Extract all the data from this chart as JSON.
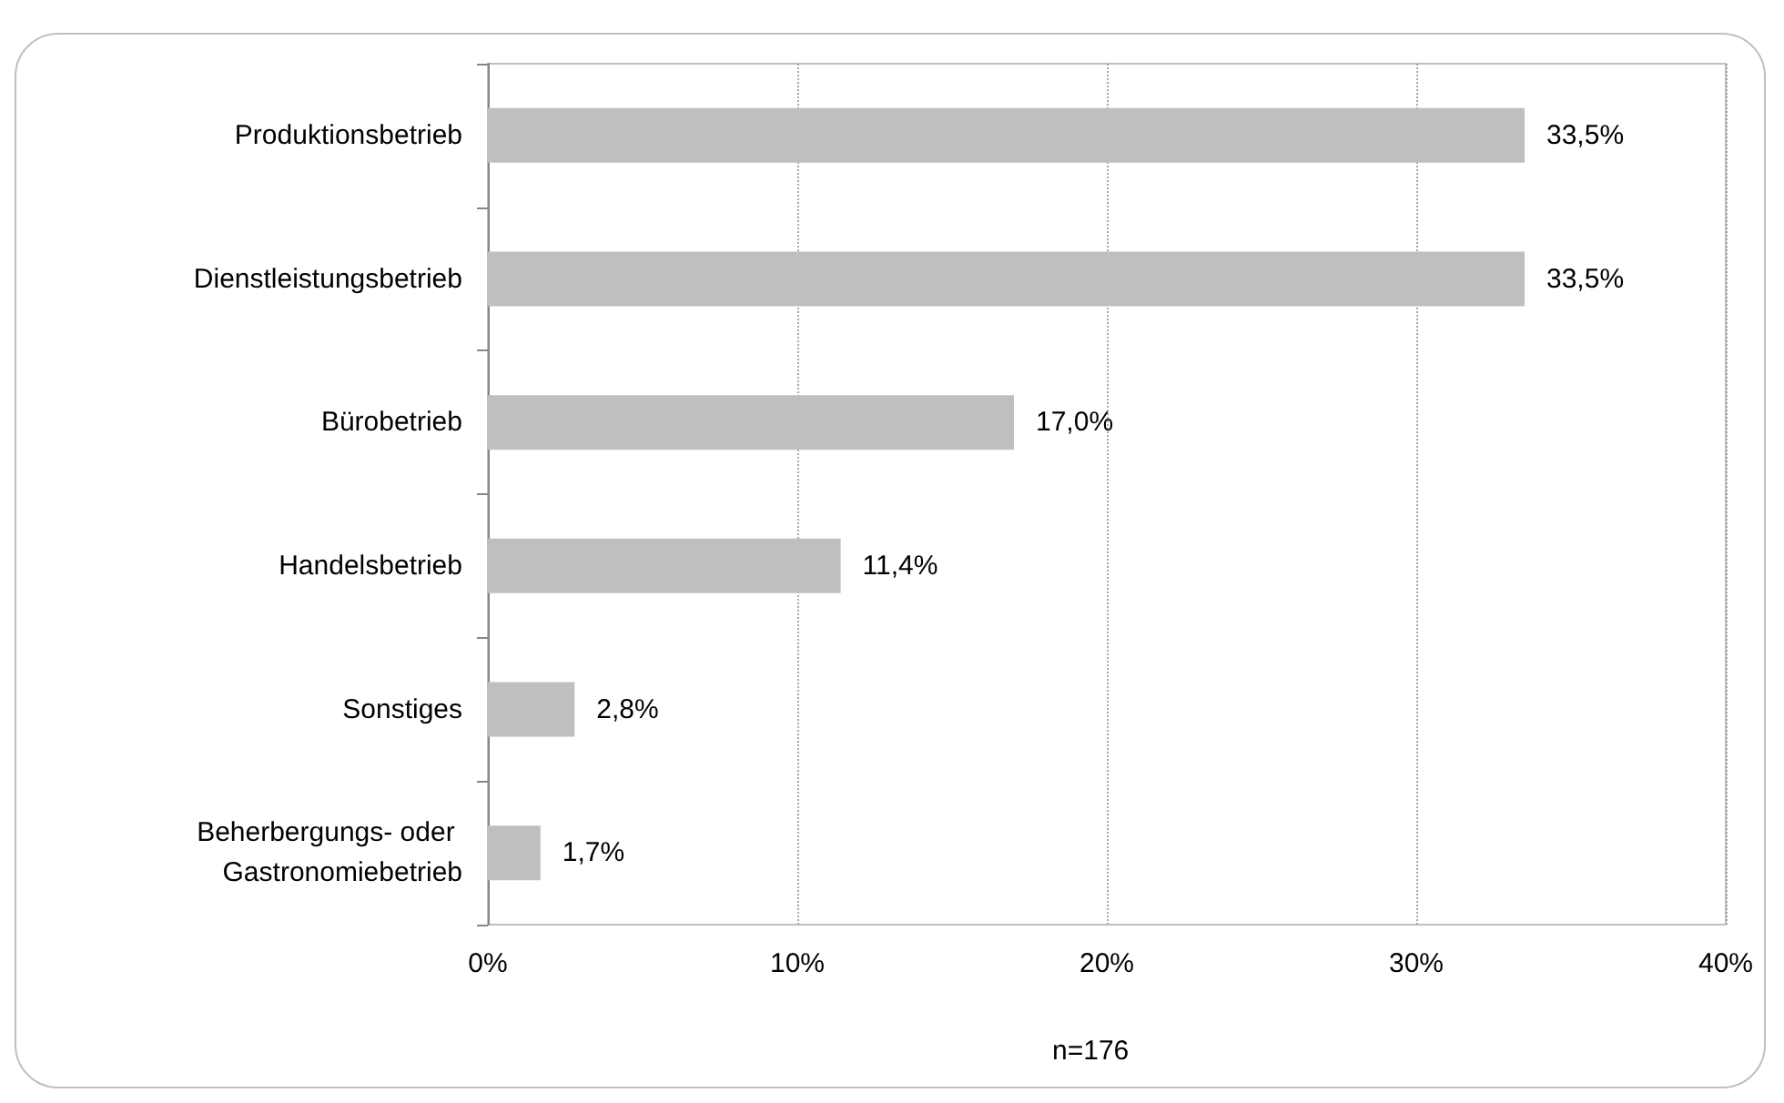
{
  "chart_data": {
    "type": "bar",
    "orientation": "horizontal",
    "categories": [
      "Produktionsbetrieb",
      "Dienstleistungsbetrieb",
      "Bürobetrieb",
      "Handelsbetrieb",
      "Sonstiges",
      "Beherbergungs- oder Gastronomiebetrieb"
    ],
    "values": [
      33.5,
      33.5,
      17.0,
      11.4,
      2.8,
      1.7
    ],
    "value_labels": [
      "33,5%",
      "33,5%",
      "17,0%",
      "11,4%",
      "2,8%",
      "1,7%"
    ],
    "color": "#bfbfbf",
    "xlim": [
      0,
      40
    ],
    "xticks": [
      {
        "value": 0,
        "label": "0%"
      },
      {
        "value": 10,
        "label": "10%"
      },
      {
        "value": 20,
        "label": "20%"
      },
      {
        "value": 30,
        "label": "30%"
      },
      {
        "value": 40,
        "label": "40%"
      }
    ],
    "grid": "x",
    "annotations": [
      "n=176"
    ]
  }
}
